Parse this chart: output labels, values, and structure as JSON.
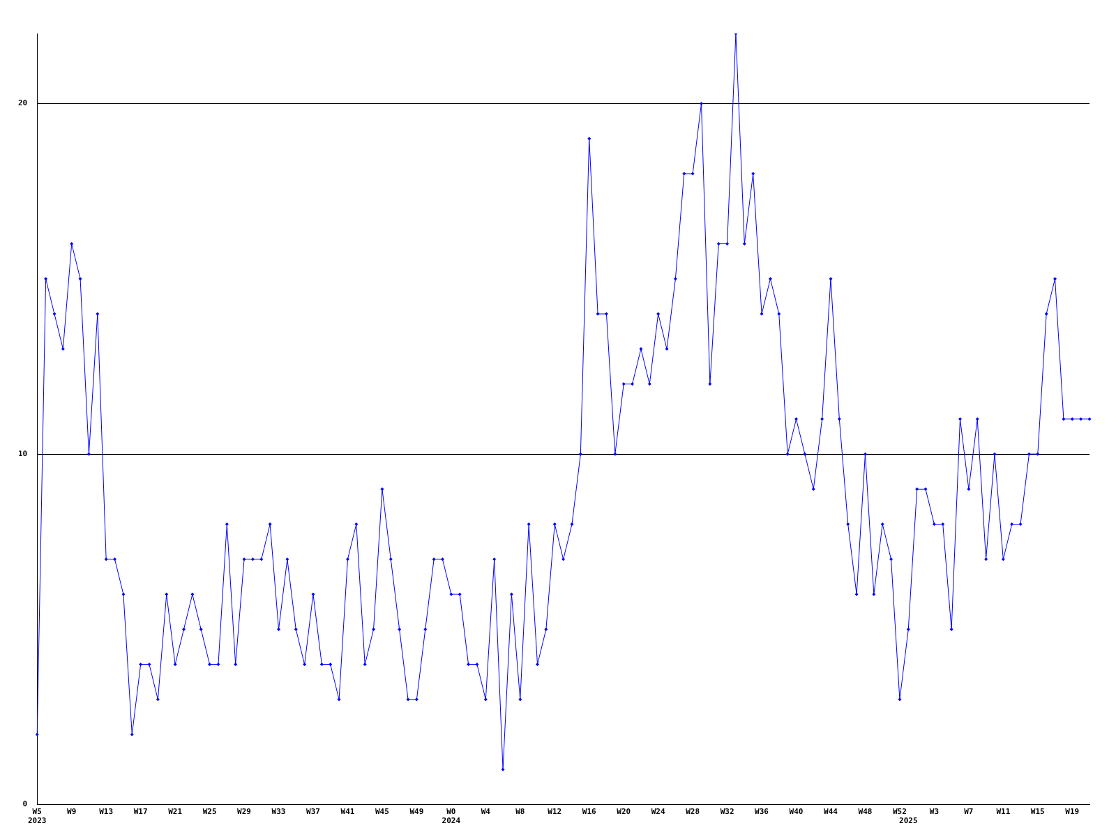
{
  "chart_data": {
    "type": "line",
    "categories": [
      "W5\n2023",
      null,
      null,
      null,
      "W9",
      null,
      null,
      null,
      "W13",
      null,
      null,
      null,
      "W17",
      null,
      null,
      null,
      "W21",
      null,
      null,
      null,
      "W25",
      null,
      null,
      null,
      "W29",
      null,
      null,
      null,
      "W33",
      null,
      null,
      null,
      "W37",
      null,
      null,
      null,
      "W41",
      null,
      null,
      null,
      "W45",
      null,
      null,
      null,
      "W49",
      null,
      null,
      null,
      "W0\n2024",
      null,
      null,
      null,
      "W4",
      null,
      null,
      null,
      "W8",
      null,
      null,
      null,
      "W12",
      null,
      null,
      null,
      "W16",
      null,
      null,
      null,
      "W20",
      null,
      null,
      null,
      "W24",
      null,
      null,
      null,
      "W28",
      null,
      null,
      null,
      "W32",
      null,
      null,
      null,
      "W36",
      null,
      null,
      null,
      "W40",
      null,
      null,
      null,
      "W44",
      null,
      null,
      null,
      "W48",
      null,
      null,
      null,
      "W52",
      "\n2025",
      null,
      null,
      "W3",
      null,
      null,
      null,
      "W7",
      null,
      null,
      null,
      "W11",
      null,
      null,
      null,
      "W15",
      null,
      null,
      null,
      "W19",
      null,
      null
    ],
    "series": [
      {
        "color": "#0000ff",
        "values": [
          2,
          15,
          14,
          13,
          16,
          15,
          10,
          14,
          7,
          7,
          6,
          2,
          4,
          4,
          3,
          6,
          4,
          5,
          6,
          5,
          4,
          4,
          8,
          4,
          7,
          7,
          7,
          8,
          5,
          7,
          5,
          4,
          6,
          4,
          4,
          3,
          7,
          8,
          4,
          5,
          9,
          7,
          5,
          3,
          3,
          5,
          7,
          7,
          6,
          6,
          4,
          4,
          3,
          7,
          1,
          6,
          3,
          8,
          4,
          5,
          8,
          7,
          8,
          10,
          19,
          14,
          14,
          10,
          12,
          12,
          13,
          12,
          14,
          13,
          15,
          18,
          18,
          20,
          12,
          16,
          16,
          22,
          16,
          18,
          14,
          15,
          14,
          10,
          11,
          10,
          9,
          11,
          15,
          11,
          8,
          6,
          10,
          6,
          8,
          7,
          3,
          5,
          9,
          9,
          8,
          8,
          5,
          11,
          9,
          11,
          7,
          10,
          7,
          8,
          8,
          10,
          10,
          14,
          15,
          11,
          11,
          11,
          11
        ]
      }
    ],
    "ylim": [
      0,
      22
    ],
    "yticks": [
      0,
      10,
      20
    ],
    "grid": "y",
    "legend": false,
    "marker": "diamond",
    "line_style": "solid"
  }
}
